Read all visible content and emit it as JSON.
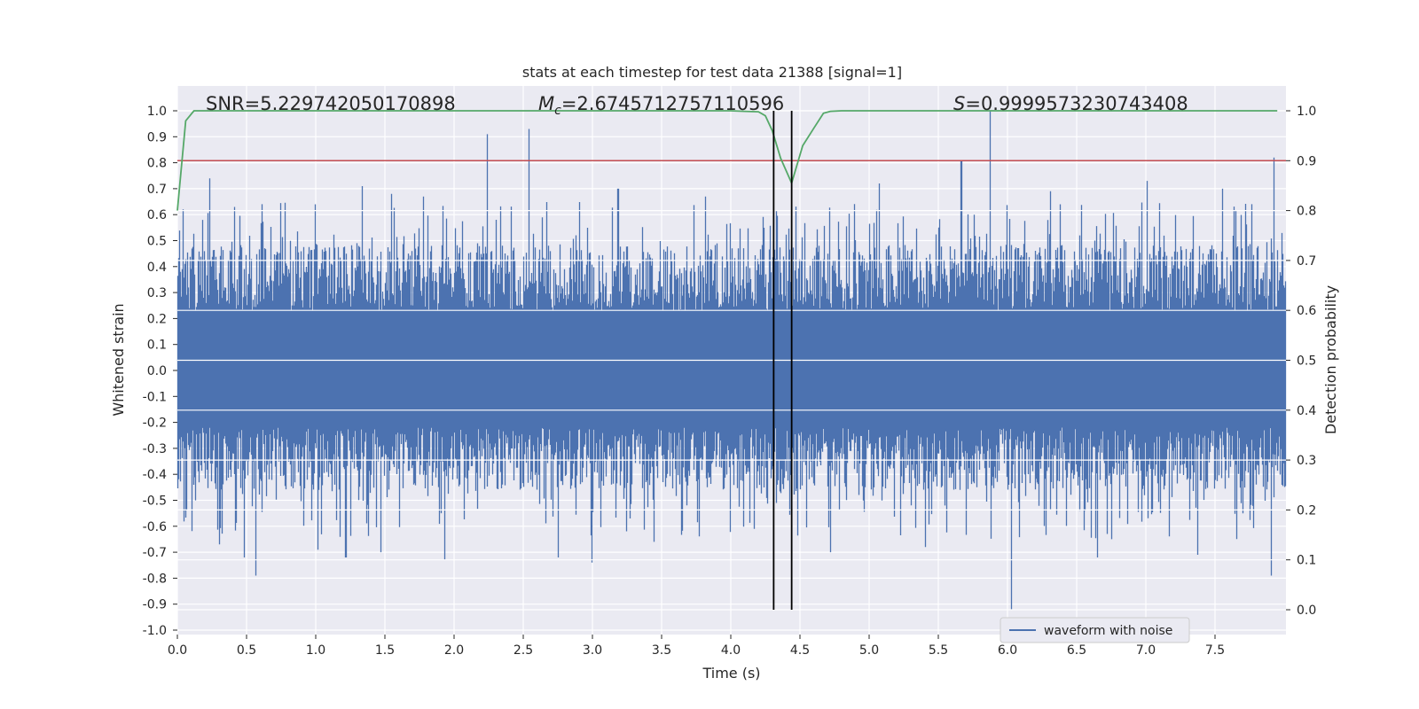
{
  "chart_data": {
    "type": "line",
    "title": "stats at each timestep for test data 21388 [signal=1]",
    "xlabel": "Time (s)",
    "ylabel": "Whitened strain",
    "y2label": "Detection probability",
    "xlim": [
      0.0,
      7.98
    ],
    "ylim": [
      -1.02,
      1.02
    ],
    "y2lim": [
      -0.04,
      1.04
    ],
    "x_ticks": [
      "0.0",
      "0.5",
      "1.0",
      "1.5",
      "2.0",
      "2.5",
      "3.0",
      "3.5",
      "4.0",
      "4.5",
      "5.0",
      "5.5",
      "6.0",
      "6.5",
      "7.0",
      "7.5"
    ],
    "y_ticks": [
      "-1.0",
      "-0.9",
      "-0.8",
      "-0.7",
      "-0.6",
      "-0.5",
      "-0.4",
      "-0.3",
      "-0.2",
      "-0.1",
      "0.0",
      "0.1",
      "0.2",
      "0.3",
      "0.4",
      "0.5",
      "0.6",
      "0.7",
      "0.8",
      "0.9",
      "1.0"
    ],
    "y2_ticks": [
      "0.0",
      "0.1",
      "0.2",
      "0.3",
      "0.4",
      "0.5",
      "0.6",
      "0.7",
      "0.8",
      "0.9",
      "1.0"
    ],
    "annotations": {
      "snr": "SNR=5.229742050170898",
      "mc_symbol": "M",
      "mc_sub": "c",
      "mc_value": "=2.6745712757110596",
      "s_symbol": "S",
      "s_value": "=0.9999573230743408"
    },
    "legend": {
      "label": "waveform with noise",
      "location": "lower-right"
    },
    "threshold": {
      "axis": "y2",
      "value": 0.9,
      "color": "#c44e52"
    },
    "event_lines": [
      4.31,
      4.44
    ],
    "waveform": {
      "name": "waveform with noise",
      "color": "#4c72b0",
      "num_samples": 8000,
      "typical_upper": 0.42,
      "typical_lower": -0.4,
      "peaks": [
        {
          "t": 0.04,
          "v": 0.62
        },
        {
          "t": 0.23,
          "v": 0.74
        },
        {
          "t": 0.56,
          "v": -0.79
        },
        {
          "t": 0.48,
          "v": -0.72
        },
        {
          "t": 0.3,
          "v": -0.67
        },
        {
          "t": 0.99,
          "v": 0.64
        },
        {
          "t": 1.01,
          "v": -0.69
        },
        {
          "t": 1.33,
          "v": 0.71
        },
        {
          "t": 1.21,
          "v": -0.72
        },
        {
          "t": 1.46,
          "v": -0.7
        },
        {
          "t": 1.54,
          "v": 0.68
        },
        {
          "t": 1.77,
          "v": 0.67
        },
        {
          "t": 1.92,
          "v": -0.73
        },
        {
          "t": 2.23,
          "v": 0.91
        },
        {
          "t": 2.53,
          "v": 0.93
        },
        {
          "t": 2.74,
          "v": -0.72
        },
        {
          "t": 2.98,
          "v": -0.74
        },
        {
          "t": 3.17,
          "v": 0.7
        },
        {
          "t": 3.43,
          "v": -0.66
        },
        {
          "t": 3.8,
          "v": 0.67
        },
        {
          "t": 4.15,
          "v": -0.61
        },
        {
          "t": 4.7,
          "v": -0.7
        },
        {
          "t": 5.05,
          "v": 0.72
        },
        {
          "t": 5.38,
          "v": -0.68
        },
        {
          "t": 5.64,
          "v": 0.81
        },
        {
          "t": 5.85,
          "v": 1.0
        },
        {
          "t": 6.0,
          "v": -0.92
        },
        {
          "t": 6.28,
          "v": 0.69
        },
        {
          "t": 6.62,
          "v": -0.72
        },
        {
          "t": 6.98,
          "v": 0.73
        },
        {
          "t": 7.34,
          "v": -0.71
        },
        {
          "t": 7.52,
          "v": 0.7
        },
        {
          "t": 7.87,
          "v": -0.79
        },
        {
          "t": 7.89,
          "v": 0.82
        }
      ]
    },
    "probability": {
      "name": "detection probability",
      "color": "#55a868",
      "x": [
        0.0,
        0.06,
        0.12,
        0.2,
        1.0,
        2.0,
        3.0,
        3.5,
        4.0,
        4.1,
        4.2,
        4.25,
        4.3,
        4.36,
        4.44,
        4.52,
        4.6,
        4.67,
        4.72,
        4.8,
        5.0,
        6.0,
        7.0,
        7.95
      ],
      "y": [
        0.8,
        0.98,
        1.0,
        1.0,
        1.0,
        1.0,
        1.0,
        1.0,
        1.0,
        0.999,
        0.998,
        0.99,
        0.96,
        0.905,
        0.855,
        0.93,
        0.965,
        0.995,
        0.999,
        1.0,
        1.0,
        1.0,
        1.0,
        1.0
      ]
    }
  }
}
